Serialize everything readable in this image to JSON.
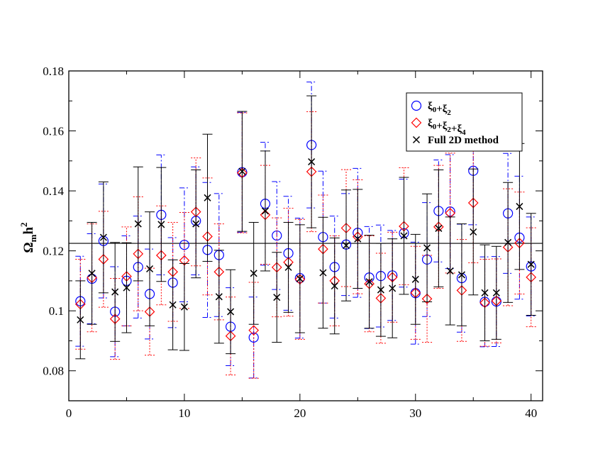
{
  "chart_data": {
    "type": "scatter",
    "ylabel": "Ωmh2",
    "ylabel_parts": {
      "main": "Ω",
      "sub": "m",
      "mid": "h",
      "sup": "2"
    },
    "xlim": [
      0,
      41
    ],
    "ylim": [
      0.07,
      0.18
    ],
    "xticks": [
      "0",
      "10",
      "20",
      "30",
      "40"
    ],
    "yticks": [
      "0.08",
      "0.1",
      "0.12",
      "0.14",
      "0.16",
      "0.18"
    ],
    "reference_line": 0.1225,
    "legend": {
      "position": "top-right",
      "entries": [
        {
          "parts": [
            [
              "ξ",
              "0"
            ],
            [
              "+ξ",
              "2"
            ]
          ]
        },
        {
          "parts": [
            [
              "ξ",
              "0"
            ],
            [
              "+ξ",
              "2"
            ],
            [
              "+ξ",
              "4"
            ]
          ]
        },
        {
          "text": "Full 2D method"
        }
      ]
    },
    "x": [
      1,
      2,
      3,
      4,
      5,
      6,
      7,
      8,
      9,
      10,
      11,
      12,
      13,
      14,
      15,
      16,
      17,
      18,
      19,
      20,
      21,
      22,
      23,
      24,
      25,
      26,
      27,
      28,
      29,
      30,
      31,
      32,
      33,
      34,
      35,
      36,
      37,
      38,
      39,
      40
    ],
    "series": [
      {
        "marker": "circle",
        "color": "#0000ff",
        "err_style": "dash-dot",
        "y": [
          0.1032,
          0.1107,
          0.1233,
          0.0997,
          0.11,
          0.1146,
          0.1056,
          0.132,
          0.1094,
          0.122,
          0.13,
          0.1203,
          0.1186,
          0.0947,
          0.1462,
          0.0911,
          0.1357,
          0.1251,
          0.1192,
          0.1109,
          0.1553,
          0.1246,
          0.1146,
          0.1221,
          0.126,
          0.1111,
          0.1116,
          0.1118,
          0.1259,
          0.1059,
          0.1171,
          0.1333,
          0.1331,
          0.1109,
          0.1467,
          0.103,
          0.1031,
          0.1325,
          0.1244,
          0.1148
        ],
        "err": [
          0.015,
          0.015,
          0.019,
          0.015,
          0.015,
          0.017,
          0.015,
          0.02,
          0.015,
          0.019,
          0.018,
          0.0225,
          0.0205,
          0.013,
          0.02,
          0.0135,
          0.0205,
          0.018,
          0.019,
          0.02,
          0.021,
          0.022,
          0.017,
          0.017,
          0.0215,
          0.017,
          0.017,
          0.015,
          0.018,
          0.017,
          0.019,
          0.017,
          0.019,
          0.018,
          0.018,
          0.015,
          0.015,
          0.02,
          0.0205,
          0.0165
        ]
      },
      {
        "marker": "diamond",
        "color": "#ff0000",
        "err_style": "dotted",
        "y": [
          0.1022,
          0.111,
          0.1172,
          0.0973,
          0.1115,
          0.119,
          0.0997,
          0.1185,
          0.113,
          0.1168,
          0.133,
          0.1248,
          0.113,
          0.0916,
          0.146,
          0.0935,
          0.132,
          0.1145,
          0.1162,
          0.1105,
          0.1464,
          0.1206,
          0.11,
          0.1276,
          0.1247,
          0.109,
          0.1042,
          0.1112,
          0.1282,
          0.106,
          0.104,
          0.128,
          0.1326,
          0.1068,
          0.136,
          0.1027,
          0.1033,
          0.1212,
          0.1226,
          0.1112
        ],
        "err": [
          0.015,
          0.018,
          0.016,
          0.0135,
          0.0165,
          0.019,
          0.0145,
          0.0165,
          0.0165,
          0.016,
          0.018,
          0.0195,
          0.016,
          0.013,
          0.02,
          0.016,
          0.0165,
          0.0165,
          0.018,
          0.02,
          0.02,
          0.018,
          0.015,
          0.0195,
          0.019,
          0.016,
          0.015,
          0.015,
          0.0195,
          0.0155,
          0.0145,
          0.0205,
          0.02,
          0.017,
          0.02,
          0.0145,
          0.014,
          0.0195,
          0.017,
          0.0165
        ]
      },
      {
        "marker": "cross",
        "color": "#000000",
        "err_style": "solid",
        "y": [
          0.097,
          0.1125,
          0.1245,
          0.1063,
          0.1077,
          0.129,
          0.114,
          0.1288,
          0.102,
          0.1013,
          0.129,
          0.1377,
          0.1047,
          0.0997,
          0.1465,
          0.1125,
          0.1333,
          0.1045,
          0.1145,
          0.1107,
          0.1497,
          0.1127,
          0.1083,
          0.1218,
          0.124,
          0.1097,
          0.107,
          0.1075,
          0.125,
          0.1105,
          0.121,
          0.1275,
          0.1133,
          0.112,
          0.1263,
          0.106,
          0.106,
          0.1228,
          0.1348,
          0.1155
        ],
        "err": [
          0.013,
          0.017,
          0.0185,
          0.0165,
          0.015,
          0.019,
          0.019,
          0.019,
          0.015,
          0.0145,
          0.018,
          0.0212,
          0.0155,
          0.014,
          0.02,
          0.017,
          0.02,
          0.015,
          0.015,
          0.018,
          0.022,
          0.0185,
          0.016,
          0.0185,
          0.0165,
          0.0155,
          0.0155,
          0.0165,
          0.0195,
          0.015,
          0.018,
          0.0195,
          0.018,
          0.017,
          0.021,
          0.016,
          0.0155,
          0.02,
          0.021,
          0.017
        ]
      }
    ]
  }
}
